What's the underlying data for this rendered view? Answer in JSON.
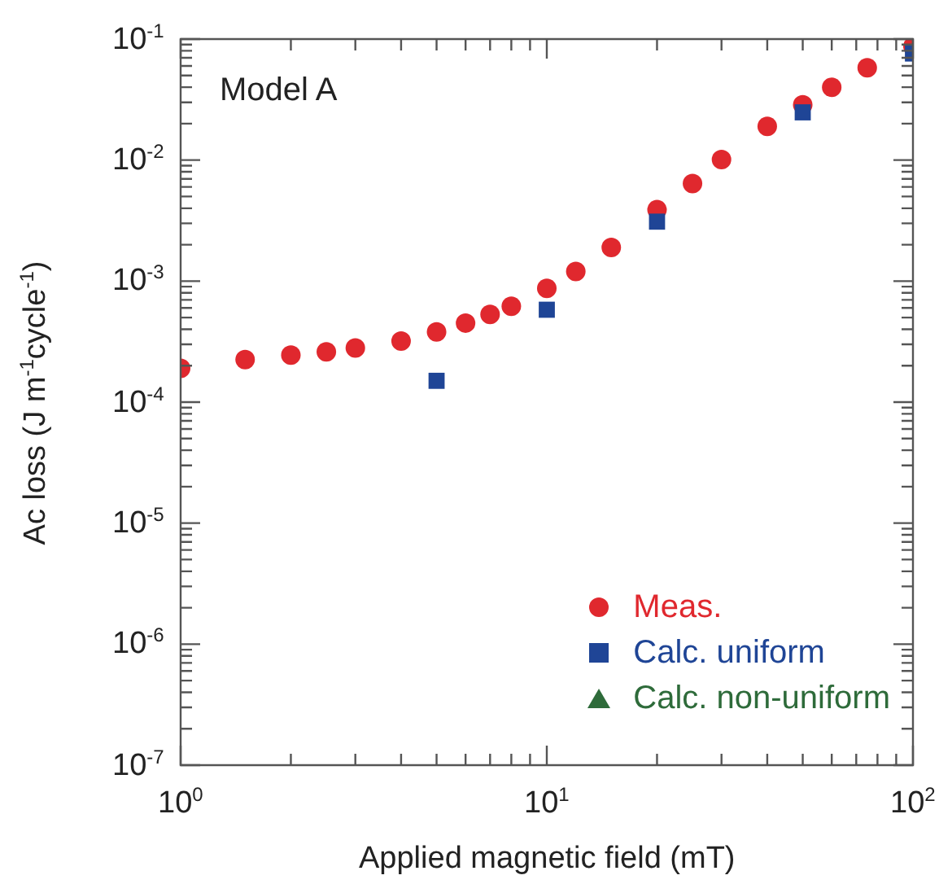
{
  "chart_data": {
    "type": "scatter",
    "xlabel": "Applied magnetic field (mT)",
    "ylabel": "Ac loss (J m$^{-1}$cycle$^{-1}$)",
    "annotations": [
      "Model A"
    ],
    "log": "xy",
    "grid": false,
    "legend": "bottom right",
    "xlim": [
      1,
      100
    ],
    "xticks": [
      {
        "value": 1,
        "label": "10$^{0}$"
      },
      {
        "value": 10,
        "label": "10$^{1}$"
      },
      {
        "value": 100,
        "label": "10$^{2}$"
      }
    ],
    "ylim": [
      1e-07,
      0.1
    ],
    "yticks": [
      {
        "value": 1e-07,
        "label": "10$^{-7}$"
      },
      {
        "value": 1e-06,
        "label": "10$^{-6}$"
      },
      {
        "value": 1e-05,
        "label": "10$^{-5}$"
      },
      {
        "value": 0.0001,
        "label": "10$^{-4}$"
      },
      {
        "value": 0.001,
        "label": "10$^{-3}$"
      },
      {
        "value": 0.01,
        "label": "10$^{-2}$"
      },
      {
        "value": 0.1,
        "label": "10$^{-1}$"
      }
    ],
    "series": [
      {
        "name": "Meas.",
        "color": "#e0282e",
        "marker": "circle",
        "x": [
          1,
          1.5,
          2,
          2.5,
          3,
          4,
          5,
          6,
          7,
          8,
          10,
          12,
          15,
          20,
          25,
          30,
          40,
          50,
          60,
          75,
          100
        ],
        "values": [
          0.00019,
          0.000225,
          0.000245,
          0.00026,
          0.00028,
          0.00032,
          0.00038,
          0.00045,
          0.00053,
          0.00062,
          0.00087,
          0.0012,
          0.0019,
          0.0039,
          0.0064,
          0.0101,
          0.019,
          0.0286,
          0.04,
          0.058,
          0.087
        ]
      },
      {
        "name": "Calc. uniform",
        "color": "#1f4596",
        "marker": "square",
        "x": [
          5,
          10,
          20,
          50,
          100
        ],
        "values": [
          0.00015,
          0.00058,
          0.0031,
          0.0248,
          0.076
        ]
      },
      {
        "name": "Calc. non-uniform",
        "color": "#2e6b3a",
        "marker": "triangle"
      }
    ]
  }
}
